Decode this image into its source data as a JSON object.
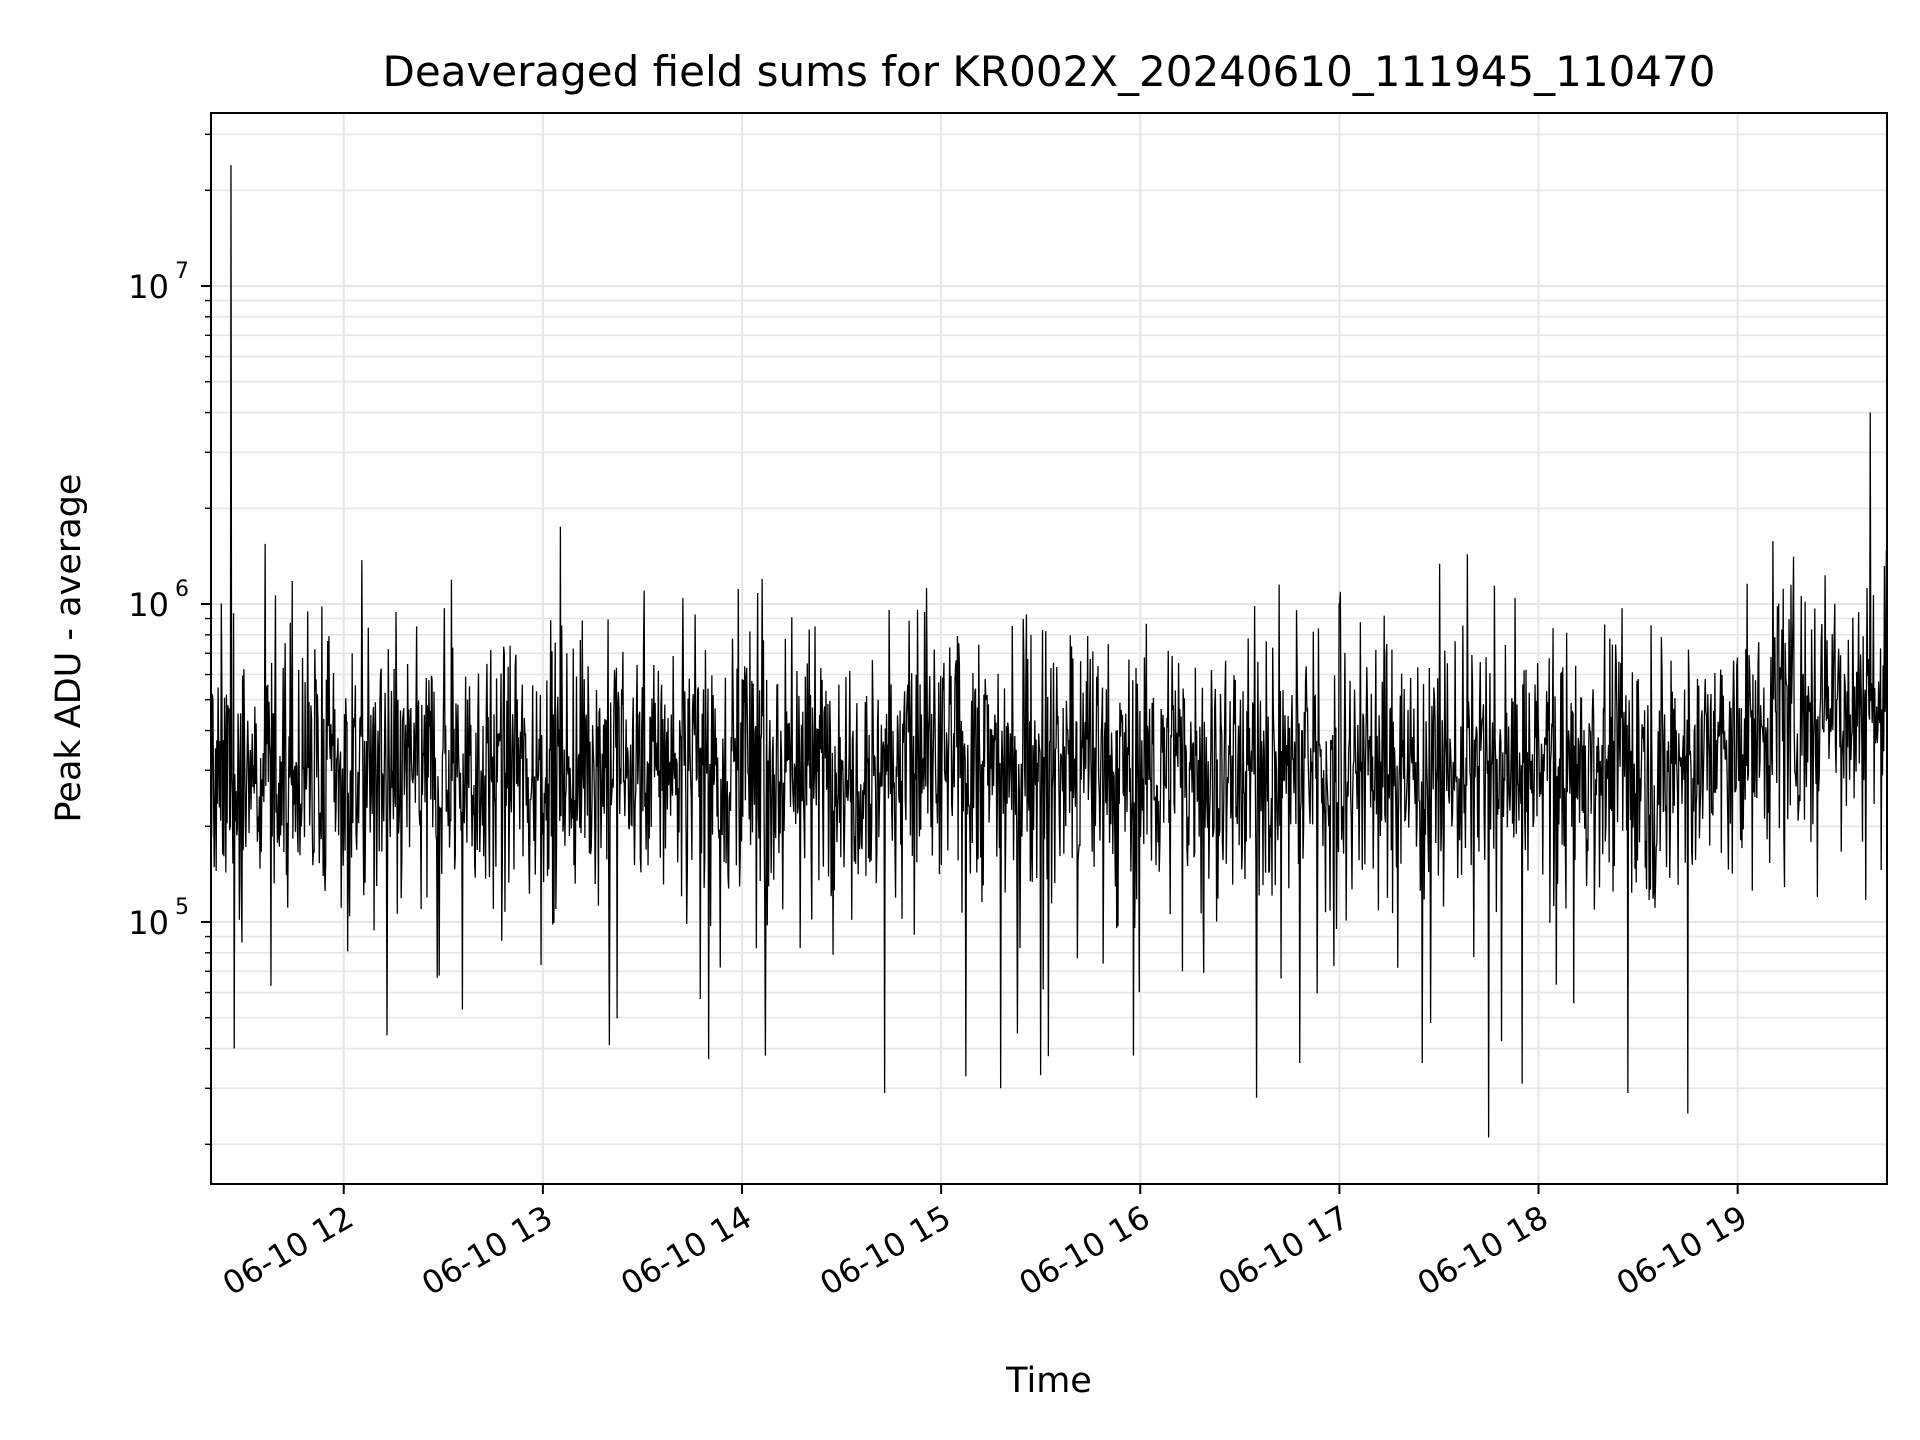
{
  "chart_data": {
    "type": "line",
    "title": "Deaveraged field sums for KR002X_20240610_111945_110470",
    "xlabel": "Time",
    "ylabel": "Peak ADU - average",
    "yscale": "log",
    "grid": true,
    "xlim": [
      "2024-06-10 11:20",
      "2024-06-10 19:45"
    ],
    "ylim": [
      15000,
      35000000
    ],
    "x_ticks": [
      {
        "value": "2024-06-10 12:00",
        "label": "06-10 12"
      },
      {
        "value": "2024-06-10 13:00",
        "label": "06-10 13"
      },
      {
        "value": "2024-06-10 14:00",
        "label": "06-10 14"
      },
      {
        "value": "2024-06-10 15:00",
        "label": "06-10 15"
      },
      {
        "value": "2024-06-10 16:00",
        "label": "06-10 16"
      },
      {
        "value": "2024-06-10 17:00",
        "label": "06-10 17"
      },
      {
        "value": "2024-06-10 18:00",
        "label": "06-10 18"
      },
      {
        "value": "2024-06-10 19:00",
        "label": "06-10 19"
      }
    ],
    "y_ticks": [
      {
        "value": 100000,
        "base": "10",
        "exp": "5"
      },
      {
        "value": 1000000,
        "base": "10",
        "exp": "6"
      },
      {
        "value": 10000000,
        "base": "10",
        "exp": "7"
      }
    ],
    "series": [
      {
        "color": "#000000",
        "trend": [
          {
            "t": "2024-06-10 11:20",
            "y": 300000
          },
          {
            "t": "2024-06-10 11:40",
            "y": 280000
          },
          {
            "t": "2024-06-10 12:00",
            "y": 300000
          },
          {
            "t": "2024-06-10 13:00",
            "y": 310000
          },
          {
            "t": "2024-06-10 14:00",
            "y": 320000
          },
          {
            "t": "2024-06-10 15:00",
            "y": 320000
          },
          {
            "t": "2024-06-10 16:00",
            "y": 300000
          },
          {
            "t": "2024-06-10 17:00",
            "y": 310000
          },
          {
            "t": "2024-06-10 18:00",
            "y": 300000
          },
          {
            "t": "2024-06-10 19:00",
            "y": 330000
          },
          {
            "t": "2024-06-10 19:12",
            "y": 480000
          },
          {
            "t": "2024-06-10 19:30",
            "y": 500000
          },
          {
            "t": "2024-06-10 19:45",
            "y": 480000
          }
        ],
        "spikes": [
          {
            "t": "2024-06-10 11:26",
            "y": 24000000
          },
          {
            "t": "2024-06-10 11:27",
            "y": 40000
          },
          {
            "t": "2024-06-10 11:38",
            "y": 63000
          },
          {
            "t": "2024-06-10 12:13",
            "y": 44000
          },
          {
            "t": "2024-06-10 13:20",
            "y": 41000
          },
          {
            "t": "2024-06-10 13:50",
            "y": 37000
          },
          {
            "t": "2024-06-10 14:06",
            "y": 1200000
          },
          {
            "t": "2024-06-10 14:07",
            "y": 38000
          },
          {
            "t": "2024-06-10 14:43",
            "y": 29000
          },
          {
            "t": "2024-06-10 15:18",
            "y": 30000
          },
          {
            "t": "2024-06-10 15:30",
            "y": 33000
          },
          {
            "t": "2024-06-10 15:58",
            "y": 38000
          },
          {
            "t": "2024-06-10 16:35",
            "y": 28000
          },
          {
            "t": "2024-06-10 16:48",
            "y": 36000
          },
          {
            "t": "2024-06-10 17:00",
            "y": 1000000
          },
          {
            "t": "2024-06-10 17:25",
            "y": 36000
          },
          {
            "t": "2024-06-10 17:45",
            "y": 21000
          },
          {
            "t": "2024-06-10 17:55",
            "y": 31000
          },
          {
            "t": "2024-06-10 18:27",
            "y": 29000
          },
          {
            "t": "2024-06-10 18:45",
            "y": 25000
          },
          {
            "t": "2024-06-10 19:16",
            "y": 1150000
          },
          {
            "t": "2024-06-10 19:24",
            "y": 120000
          },
          {
            "t": "2024-06-10 19:40",
            "y": 4000000
          }
        ]
      }
    ]
  }
}
